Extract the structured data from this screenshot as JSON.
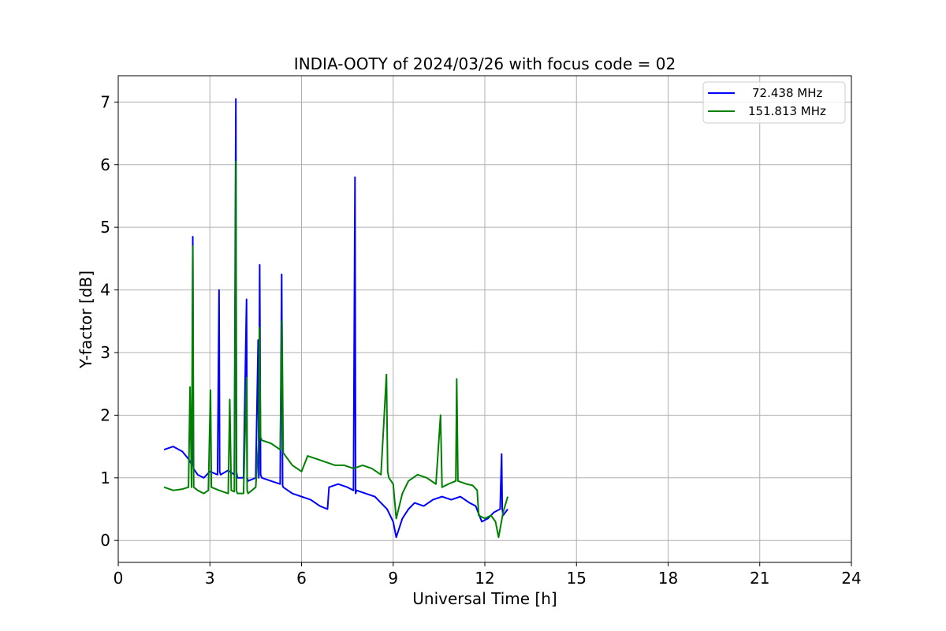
{
  "chart_data": {
    "type": "line",
    "title": "INDIA-OOTY of 2024/03/26 with focus code = 02",
    "xlabel": "Universal Time [h]",
    "ylabel": "Y-factor [dB]",
    "xlim": [
      0,
      24
    ],
    "ylim": [
      -0.35,
      7.42
    ],
    "xticks": [
      0,
      3,
      6,
      9,
      12,
      15,
      18,
      21,
      24
    ],
    "yticks": [
      0,
      1,
      2,
      3,
      4,
      5,
      6,
      7
    ],
    "grid": true,
    "legend_position": "top-right",
    "series": [
      {
        "name": "72.438 MHz",
        "color": "#0000ff",
        "x": [
          1.5,
          1.8,
          2.1,
          2.3,
          2.42,
          2.44,
          2.46,
          2.6,
          2.8,
          3.0,
          3.25,
          3.3,
          3.32,
          3.35,
          3.6,
          3.8,
          3.85,
          3.87,
          3.9,
          4.1,
          4.2,
          4.22,
          4.25,
          4.5,
          4.58,
          4.6,
          4.63,
          4.66,
          4.7,
          5.0,
          5.3,
          5.35,
          5.38,
          5.4,
          5.7,
          6.0,
          6.3,
          6.6,
          6.85,
          6.9,
          7.2,
          7.5,
          7.7,
          7.75,
          7.77,
          7.8,
          8.1,
          8.4,
          8.6,
          8.8,
          9.0,
          9.1,
          9.3,
          9.5,
          9.7,
          10.0,
          10.3,
          10.6,
          10.9,
          11.2,
          11.5,
          11.7,
          11.9,
          12.1,
          12.3,
          12.5,
          12.55,
          12.57,
          12.6,
          12.75
        ],
        "y": [
          1.45,
          1.5,
          1.42,
          1.3,
          1.2,
          4.85,
          1.15,
          1.05,
          1.0,
          1.1,
          1.05,
          4.0,
          1.1,
          1.05,
          1.12,
          1.05,
          7.05,
          1.1,
          1.0,
          1.0,
          3.85,
          1.0,
          0.95,
          1.0,
          3.2,
          1.0,
          4.4,
          1.05,
          1.0,
          0.95,
          0.9,
          4.25,
          0.88,
          0.85,
          0.75,
          0.7,
          0.65,
          0.55,
          0.5,
          0.85,
          0.9,
          0.85,
          0.8,
          5.8,
          0.75,
          0.8,
          0.75,
          0.7,
          0.6,
          0.5,
          0.3,
          0.05,
          0.35,
          0.5,
          0.6,
          0.55,
          0.65,
          0.7,
          0.65,
          0.7,
          0.6,
          0.55,
          0.3,
          0.35,
          0.45,
          0.5,
          1.38,
          0.5,
          0.4,
          0.5
        ]
      },
      {
        "name": "151.813 MHz",
        "color": "#008000",
        "x": [
          1.5,
          1.8,
          2.1,
          2.3,
          2.35,
          2.4,
          2.44,
          2.47,
          2.6,
          2.8,
          2.95,
          3.02,
          3.05,
          3.3,
          3.6,
          3.65,
          3.7,
          3.8,
          3.85,
          3.87,
          3.9,
          4.1,
          4.2,
          4.22,
          4.25,
          4.5,
          4.6,
          4.62,
          4.66,
          4.7,
          5.0,
          5.3,
          5.36,
          5.4,
          5.7,
          6.0,
          6.2,
          6.5,
          6.8,
          7.1,
          7.4,
          7.7,
          8.0,
          8.3,
          8.6,
          8.78,
          8.82,
          8.86,
          9.0,
          9.1,
          9.3,
          9.5,
          9.8,
          10.1,
          10.4,
          10.55,
          10.6,
          10.8,
          11.05,
          11.08,
          11.12,
          11.4,
          11.6,
          11.75,
          11.8,
          12.0,
          12.2,
          12.35,
          12.45,
          12.6,
          12.75
        ],
        "y": [
          0.85,
          0.8,
          0.82,
          0.85,
          2.45,
          0.85,
          4.7,
          0.85,
          0.8,
          0.75,
          0.8,
          2.4,
          0.85,
          0.8,
          0.75,
          2.25,
          0.8,
          0.78,
          6.05,
          0.8,
          0.75,
          0.75,
          2.6,
          0.8,
          0.75,
          0.85,
          1.6,
          3.4,
          1.65,
          1.6,
          1.55,
          1.45,
          3.5,
          1.4,
          1.2,
          1.1,
          1.35,
          1.3,
          1.25,
          1.2,
          1.2,
          1.15,
          1.2,
          1.15,
          1.05,
          2.65,
          1.1,
          1.0,
          0.9,
          0.35,
          0.75,
          0.95,
          1.05,
          1.0,
          0.9,
          2.0,
          0.85,
          0.9,
          0.95,
          2.58,
          0.95,
          0.9,
          0.88,
          0.8,
          0.4,
          0.35,
          0.4,
          0.3,
          0.05,
          0.45,
          0.7
        ]
      }
    ]
  }
}
